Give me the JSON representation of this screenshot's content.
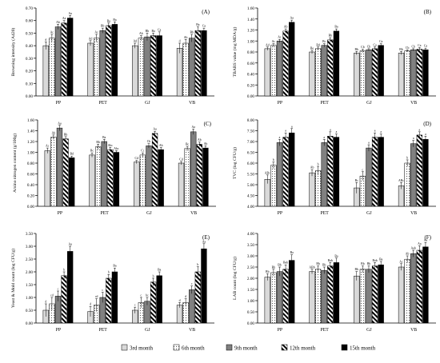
{
  "legend": {
    "items": [
      "3rd month",
      "6th month",
      "9th month",
      "12th month",
      "15th month"
    ],
    "fills": [
      "#d9d9d9",
      "dots",
      "#808080",
      "hatch",
      "#000000"
    ],
    "placement": "bottom-center"
  },
  "chart_data": [
    {
      "type": "bar",
      "panel": "(A)",
      "ylabel": "Browning intensity (A420)",
      "ylim": [
        0,
        0.7
      ],
      "ytick_labels": [
        "0.00",
        "0.10",
        "0.20",
        "0.30",
        "0.40",
        "0.50",
        "0.60",
        "0.70"
      ],
      "categories": [
        "PP",
        "PET",
        "GJ",
        "VB"
      ],
      "series": [
        {
          "name": "3rd month",
          "values": [
            0.4,
            0.42,
            0.4,
            0.38
          ],
          "errors": [
            0.03,
            0.02,
            0.02,
            0.04
          ],
          "labels": [
            "d",
            "Ad",
            "Ad",
            "d"
          ]
        },
        {
          "name": "6th month",
          "values": [
            0.46,
            0.46,
            0.46,
            0.42
          ],
          "errors": [
            0.03,
            0.03,
            0.02,
            0.03
          ],
          "labels": [
            "Ac",
            "Ac",
            "Ab",
            "Ab"
          ]
        },
        {
          "name": "9th month",
          "values": [
            0.55,
            0.52,
            0.47,
            0.46
          ],
          "errors": [
            0.02,
            0.02,
            0.03,
            0.03
          ],
          "labels": [
            "Ab",
            "Bb",
            "Bb",
            "Bb"
          ]
        },
        {
          "name": "12th month",
          "values": [
            0.58,
            0.56,
            0.48,
            0.52
          ],
          "errors": [
            0.02,
            0.02,
            0.02,
            0.03
          ],
          "labels": [
            "Aa",
            "Ba",
            "Ba",
            "Ba"
          ]
        },
        {
          "name": "15th month",
          "values": [
            0.62,
            0.57,
            0.48,
            0.52
          ],
          "errors": [
            0.02,
            0.02,
            0.03,
            0.02
          ],
          "labels": [
            "Aa",
            "Ba",
            "Ca",
            "Ca"
          ]
        }
      ]
    },
    {
      "type": "bar",
      "panel": "(B)",
      "ylabel": "TBARS value (mg MDA/g)",
      "ylim": [
        0,
        1.6
      ],
      "ytick_labels": [
        "0.00",
        "0.20",
        "0.40",
        "0.60",
        "0.80",
        "1.00",
        "1.20",
        "1.40",
        "1.60"
      ],
      "categories": [
        "PP",
        "PET",
        "GJ",
        "VB"
      ],
      "series": [
        {
          "name": "3rd month",
          "values": [
            0.86,
            0.8,
            0.78,
            0.78
          ],
          "errors": [
            0.03,
            0.03,
            0.03,
            0.03
          ],
          "labels": [
            "Ad",
            "Be",
            "Bb",
            "Bb"
          ]
        },
        {
          "name": "6th month",
          "values": [
            0.92,
            0.86,
            0.82,
            0.82
          ],
          "errors": [
            0.03,
            0.03,
            0.03,
            0.02
          ],
          "labels": [
            "Ac",
            "Bd",
            "Cb",
            "Cb"
          ]
        },
        {
          "name": "9th month",
          "values": [
            1.0,
            0.92,
            0.84,
            0.84
          ],
          "errors": [
            0.03,
            0.03,
            0.02,
            0.02
          ],
          "labels": [
            "Ac",
            "Bc",
            "Cb",
            "Cb"
          ]
        },
        {
          "name": "12th month",
          "values": [
            1.18,
            1.02,
            0.86,
            0.85
          ],
          "errors": [
            0.04,
            0.04,
            0.03,
            0.03
          ],
          "labels": [
            "Ab",
            "Bb",
            "Ca",
            "Ca"
          ]
        },
        {
          "name": "15th month",
          "values": [
            1.34,
            1.18,
            0.92,
            0.84
          ],
          "errors": [
            0.04,
            0.04,
            0.03,
            0.03
          ],
          "labels": [
            "Aa",
            "Ba",
            "Ca",
            "Ca"
          ]
        }
      ]
    },
    {
      "type": "bar",
      "panel": "(C)",
      "ylabel": "Amino nitrogen content (g/100g)",
      "ylim": [
        0,
        1.6
      ],
      "ytick_labels": [
        "0.00",
        "0.20",
        "0.40",
        "0.60",
        "0.80",
        "1.00",
        "1.20",
        "1.40",
        "1.60"
      ],
      "categories": [
        "PP",
        "PET",
        "GJ",
        "VB"
      ],
      "series": [
        {
          "name": "3rd month",
          "values": [
            1.03,
            0.95,
            0.82,
            0.8
          ],
          "errors": [
            0.05,
            0.04,
            0.03,
            0.03
          ],
          "labels": [
            "Ac",
            "Bc",
            "Cd",
            "Cd"
          ]
        },
        {
          "name": "6th month",
          "values": [
            1.28,
            1.1,
            0.95,
            1.07
          ],
          "errors": [
            0.04,
            0.05,
            0.04,
            0.04
          ],
          "labels": [
            "Ab",
            "Bb",
            "Cc",
            "Bc"
          ]
        },
        {
          "name": "9th month",
          "values": [
            1.45,
            1.2,
            1.12,
            1.38
          ],
          "errors": [
            0.05,
            0.04,
            0.04,
            0.05
          ],
          "labels": [
            "Aa",
            "Ba",
            "Cb",
            "Aa"
          ]
        },
        {
          "name": "12th month",
          "values": [
            1.25,
            1.05,
            1.35,
            1.15
          ],
          "errors": [
            0.04,
            0.04,
            0.04,
            0.04
          ],
          "labels": [
            "Bb",
            "Abc",
            "Aa",
            "Ab"
          ]
        },
        {
          "name": "15th month",
          "values": [
            0.9,
            1.0,
            1.05,
            1.08
          ],
          "errors": [
            0.03,
            0.03,
            0.04,
            0.04
          ],
          "labels": [
            "Bd",
            "Abc",
            "Ab",
            "Ab"
          ]
        }
      ]
    },
    {
      "type": "bar",
      "panel": "(D)",
      "ylabel": "TVC (log CFU/g)",
      "ylim": [
        4.0,
        8.0
      ],
      "ytick_labels": [
        "4.00",
        "4.50",
        "5.00",
        "5.50",
        "6.00",
        "6.50",
        "7.00",
        "7.50",
        "8.00"
      ],
      "categories": [
        "PP",
        "PET",
        "GJ",
        "VB"
      ],
      "series": [
        {
          "name": "3rd month",
          "values": [
            5.25,
            5.55,
            4.85,
            4.95
          ],
          "errors": [
            0.2,
            0.15,
            0.25,
            0.15
          ],
          "labels": [
            "ABc",
            "Ab",
            "Bc",
            "ABc"
          ]
        },
        {
          "name": "6th month",
          "values": [
            5.9,
            5.65,
            5.4,
            6.0
          ],
          "errors": [
            0.15,
            0.2,
            0.2,
            0.15
          ],
          "labels": [
            "b",
            "b",
            "c",
            "b"
          ]
        },
        {
          "name": "9th month",
          "values": [
            6.95,
            6.95,
            6.7,
            6.9
          ],
          "errors": [
            0.15,
            0.15,
            0.15,
            0.15
          ],
          "labels": [
            "a",
            "a",
            "a",
            "a"
          ]
        },
        {
          "name": "12th month",
          "values": [
            7.2,
            7.25,
            7.2,
            7.3
          ],
          "errors": [
            0.2,
            0.2,
            0.2,
            0.15
          ],
          "labels": [
            "a",
            "a",
            "a",
            "a"
          ]
        },
        {
          "name": "15th month",
          "values": [
            7.4,
            7.2,
            7.2,
            7.1
          ],
          "errors": [
            0.2,
            0.15,
            0.15,
            0.15
          ],
          "labels": [
            "a",
            "a",
            "a",
            "a"
          ]
        }
      ]
    },
    {
      "type": "bar",
      "panel": "(E)",
      "ylabel": "Yeast & Mold count (log CFU/g)",
      "ylim": [
        0,
        3.5
      ],
      "ytick_labels": [
        "0.00",
        "0.50",
        "1.00",
        "1.50",
        "2.00",
        "2.50",
        "3.00",
        "3.50"
      ],
      "categories": [
        "PP",
        "PET",
        "GJ",
        "VB"
      ],
      "series": [
        {
          "name": "3rd month",
          "values": [
            0.5,
            0.45,
            0.5,
            0.7
          ],
          "errors": [
            0.25,
            0.2,
            0.12,
            0.1
          ],
          "labels": [
            "d",
            "d",
            "c",
            "d"
          ]
        },
        {
          "name": "6th month",
          "values": [
            0.75,
            0.7,
            0.8,
            0.8
          ],
          "errors": [
            0.25,
            0.25,
            0.2,
            0.15
          ],
          "labels": [
            "cd",
            "cd",
            "c",
            "d"
          ]
        },
        {
          "name": "9th month",
          "values": [
            1.05,
            1.0,
            0.85,
            1.3
          ],
          "errors": [
            0.2,
            0.2,
            0.15,
            0.15
          ],
          "labels": [
            "c",
            "c",
            "bc",
            "c"
          ]
        },
        {
          "name": "12th month",
          "values": [
            1.85,
            1.75,
            1.6,
            2.0
          ],
          "errors": [
            0.15,
            0.15,
            0.15,
            0.2
          ],
          "labels": [
            "b",
            "b",
            "b",
            "b"
          ]
        },
        {
          "name": "15th month",
          "values": [
            2.8,
            2.0,
            1.85,
            2.9
          ],
          "errors": [
            0.2,
            0.15,
            0.15,
            0.2
          ],
          "labels": [
            "Aa",
            "Ba",
            "Ba",
            "Aa"
          ]
        }
      ]
    },
    {
      "type": "bar",
      "panel": "(F)",
      "ylabel": "LAB count (log CFU/g)",
      "ylim": [
        0,
        4.0
      ],
      "ytick_labels": [
        "0.00",
        "0.50",
        "1.00",
        "1.50",
        "2.00",
        "2.50",
        "3.00",
        "3.50",
        "4.00"
      ],
      "categories": [
        "PP",
        "PET",
        "GJ",
        "VB"
      ],
      "series": [
        {
          "name": "3rd month",
          "values": [
            2.05,
            2.3,
            2.1,
            2.5
          ],
          "errors": [
            0.15,
            0.1,
            0.2,
            0.15
          ],
          "labels": [
            "Bb",
            "ABb",
            "Bb",
            "Ac"
          ]
        },
        {
          "name": "6th month",
          "values": [
            2.25,
            2.4,
            2.4,
            2.85
          ],
          "errors": [
            0.15,
            0.15,
            0.15,
            0.15
          ],
          "labels": [
            "Bb",
            "Bb",
            "Bb",
            "Ab"
          ]
        },
        {
          "name": "9th month",
          "values": [
            2.3,
            2.35,
            2.4,
            3.1
          ],
          "errors": [
            0.2,
            0.15,
            0.15,
            0.15
          ],
          "labels": [
            "Bb",
            "Bb",
            "Bb",
            "Aab"
          ]
        },
        {
          "name": "12th month",
          "values": [
            2.4,
            2.55,
            2.55,
            3.25
          ],
          "errors": [
            0.2,
            0.15,
            0.15,
            0.2
          ],
          "labels": [
            "Bab",
            "Bab",
            "Bab",
            "Aa"
          ]
        },
        {
          "name": "15th month",
          "values": [
            2.8,
            2.7,
            2.6,
            3.4
          ],
          "errors": [
            0.25,
            0.2,
            0.15,
            0.2
          ],
          "labels": [
            "Ba",
            "Ba",
            "Ba",
            "Aa"
          ]
        }
      ]
    }
  ]
}
